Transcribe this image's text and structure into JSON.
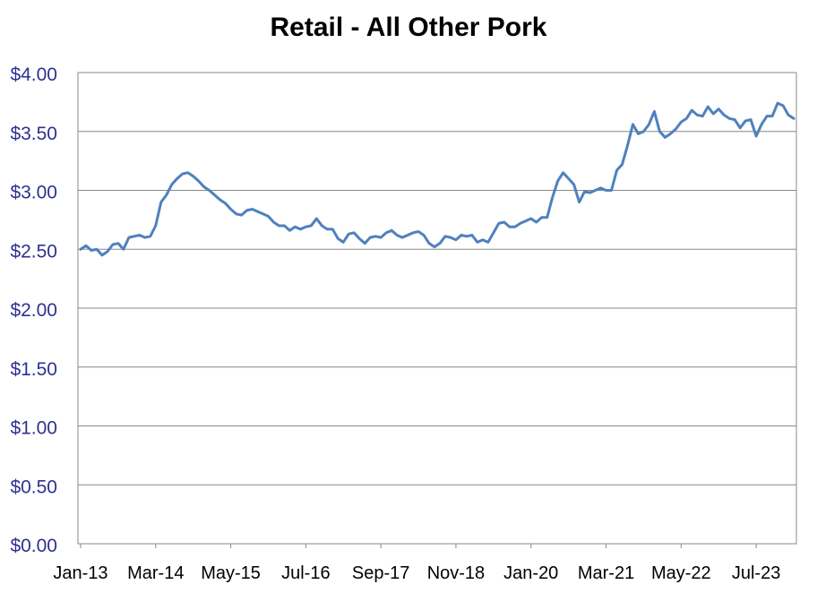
{
  "chart_data": {
    "type": "line",
    "title": "Retail - All Other Pork",
    "xlabel": "",
    "ylabel": "",
    "ylim": [
      0,
      4
    ],
    "y_ticks": [
      0,
      0.5,
      1,
      1.5,
      2,
      2.5,
      3,
      3.5,
      4
    ],
    "y_tick_labels": [
      "$0.00",
      "$0.50",
      "$1.00",
      "$1.50",
      "$2.00",
      "$2.50",
      "$3.00",
      "$3.50",
      "$4.00"
    ],
    "x_tick_labels": [
      "Jan-13",
      "Mar-14",
      "May-15",
      "Jul-16",
      "Sep-17",
      "Nov-18",
      "Jan-20",
      "Mar-21",
      "May-22",
      "Jul-23"
    ],
    "x_tick_every_n_months": 14,
    "grid": "horizontal",
    "line_color": "#4F81BD",
    "series": [
      {
        "name": "",
        "start": "Jan-13",
        "frequency": "monthly",
        "values": [
          2.5,
          2.53,
          2.49,
          2.5,
          2.45,
          2.48,
          2.54,
          2.55,
          2.5,
          2.6,
          2.61,
          2.62,
          2.6,
          2.61,
          2.7,
          2.9,
          2.96,
          3.05,
          3.1,
          3.14,
          3.15,
          3.12,
          3.08,
          3.03,
          3.0,
          2.96,
          2.92,
          2.89,
          2.84,
          2.8,
          2.79,
          2.83,
          2.84,
          2.82,
          2.8,
          2.78,
          2.73,
          2.7,
          2.7,
          2.66,
          2.69,
          2.67,
          2.69,
          2.7,
          2.76,
          2.7,
          2.67,
          2.67,
          2.59,
          2.56,
          2.63,
          2.64,
          2.59,
          2.55,
          2.6,
          2.61,
          2.6,
          2.64,
          2.66,
          2.62,
          2.6,
          2.62,
          2.64,
          2.65,
          2.62,
          2.55,
          2.52,
          2.55,
          2.61,
          2.6,
          2.58,
          2.62,
          2.61,
          2.62,
          2.56,
          2.58,
          2.56,
          2.64,
          2.72,
          2.73,
          2.69,
          2.69,
          2.72,
          2.74,
          2.76,
          2.73,
          2.77,
          2.77,
          2.94,
          3.08,
          3.15,
          3.1,
          3.05,
          2.9,
          2.99,
          2.98,
          3.0,
          3.02,
          3.0,
          3.0,
          3.17,
          3.22,
          3.38,
          3.56,
          3.48,
          3.5,
          3.56,
          3.67,
          3.5,
          3.45,
          3.48,
          3.52,
          3.58,
          3.61,
          3.68,
          3.64,
          3.63,
          3.71,
          3.65,
          3.69,
          3.64,
          3.61,
          3.6,
          3.53,
          3.59,
          3.6,
          3.46,
          3.56,
          3.63,
          3.63,
          3.74,
          3.72,
          3.64,
          3.61
        ]
      }
    ]
  }
}
